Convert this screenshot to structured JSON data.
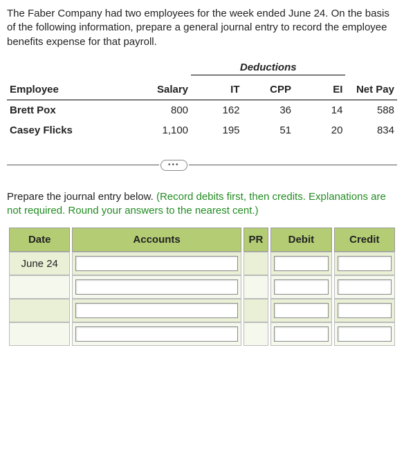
{
  "intro": "The Faber Company had two employees for the week ended June 24. On the basis of the following information, prepare a general journal entry to record the employee benefits expense for that payroll.",
  "payroll": {
    "deductions_label": "Deductions",
    "headers": {
      "employee": "Employee",
      "salary": "Salary",
      "it": "IT",
      "cpp": "CPP",
      "ei": "EI",
      "netpay": "Net Pay"
    },
    "rows": [
      {
        "employee": "Brett Pox",
        "salary": "800",
        "it": "162",
        "cpp": "36",
        "ei": "14",
        "netpay": "588"
      },
      {
        "employee": "Casey Flicks",
        "salary": "1,100",
        "it": "195",
        "cpp": "51",
        "ei": "20",
        "netpay": "834"
      }
    ]
  },
  "divider_glyph": "•••",
  "instruction": {
    "lead": "Prepare the journal entry below. ",
    "note": "(Record debits first, then credits. Explanations are not required. Round your answers to the nearest cent.)"
  },
  "journal": {
    "headers": {
      "date": "Date",
      "accounts": "Accounts",
      "pr": "PR",
      "debit": "Debit",
      "credit": "Credit"
    },
    "date_value": "June 24",
    "row_count": 4
  },
  "colors": {
    "header_bg": "#b4cd74",
    "row_bg": "#e9f0d5",
    "row_alt_bg": "#f5f8ec",
    "note_color": "#228b22"
  }
}
